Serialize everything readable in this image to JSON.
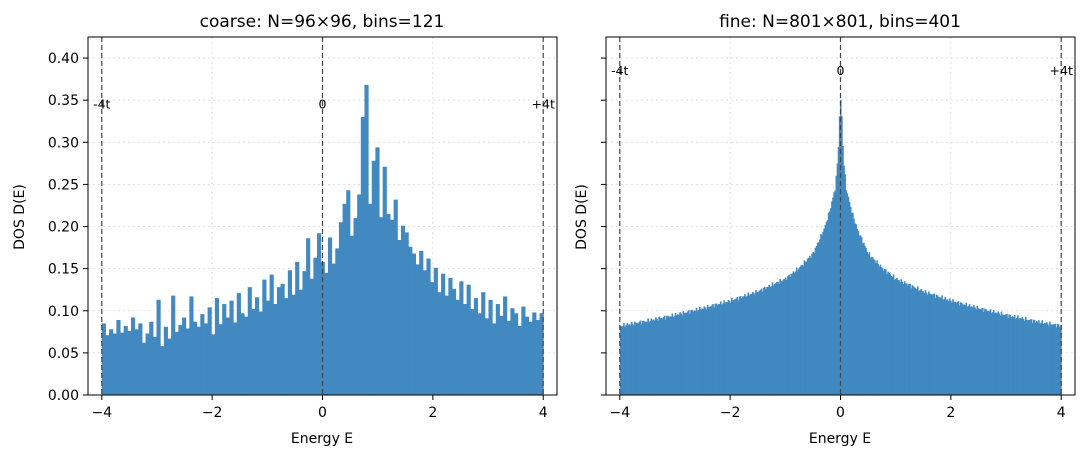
{
  "chart_data": [
    {
      "type": "bar",
      "title": "coarse: N=96×96, bins=121",
      "xlabel": "Energy E",
      "ylabel": "DOS D(E)",
      "xlim": [
        -4.25,
        4.25
      ],
      "ylim": [
        0,
        0.425
      ],
      "xticks": [
        -4,
        -2,
        0,
        2,
        4
      ],
      "xtick_labels": [
        "−4",
        "−2",
        "0",
        "2",
        "4"
      ],
      "yticks": [
        0,
        0.05,
        0.1,
        0.15,
        0.2,
        0.25,
        0.3,
        0.35,
        0.4
      ],
      "ytick_labels": [
        "0.00",
        "0.05",
        "0.10",
        "0.15",
        "0.20",
        "0.25",
        "0.30",
        "0.35",
        "0.40"
      ],
      "grid": true,
      "bar_color": "#4189c0",
      "bin_range": [
        -4,
        4
      ],
      "bins": 121,
      "values": [
        0.085,
        0.071,
        0.078,
        0.073,
        0.089,
        0.074,
        0.082,
        0.076,
        0.092,
        0.078,
        0.085,
        0.062,
        0.073,
        0.087,
        0.069,
        0.113,
        0.058,
        0.081,
        0.067,
        0.118,
        0.075,
        0.083,
        0.092,
        0.079,
        0.117,
        0.087,
        0.081,
        0.096,
        0.085,
        0.104,
        0.072,
        0.115,
        0.084,
        0.108,
        0.092,
        0.112,
        0.086,
        0.121,
        0.097,
        0.093,
        0.128,
        0.102,
        0.116,
        0.099,
        0.137,
        0.112,
        0.143,
        0.108,
        0.128,
        0.132,
        0.115,
        0.148,
        0.119,
        0.158,
        0.125,
        0.147,
        0.186,
        0.138,
        0.163,
        0.192,
        0.158,
        0.145,
        0.187,
        0.156,
        0.174,
        0.205,
        0.227,
        0.243,
        0.189,
        0.21,
        0.238,
        0.33,
        0.368,
        0.227,
        0.278,
        0.294,
        0.211,
        0.271,
        0.215,
        0.208,
        0.232,
        0.184,
        0.201,
        0.193,
        0.176,
        0.168,
        0.155,
        0.171,
        0.148,
        0.162,
        0.134,
        0.151,
        0.122,
        0.144,
        0.118,
        0.139,
        0.126,
        0.113,
        0.135,
        0.108,
        0.131,
        0.102,
        0.115,
        0.097,
        0.122,
        0.091,
        0.113,
        0.085,
        0.108,
        0.094,
        0.117,
        0.088,
        0.103,
        0.097,
        0.082,
        0.105,
        0.093,
        0.087,
        0.098,
        0.089,
        0.097
      ],
      "vlines": [
        {
          "x": -4,
          "label": "-4t"
        },
        {
          "x": 0,
          "label": "0"
        },
        {
          "x": 4,
          "label": "+4t"
        }
      ]
    },
    {
      "type": "bar",
      "title": "fine: N=801×801, bins=401",
      "xlabel": "Energy E",
      "ylabel": "DOS D(E)",
      "xlim": [
        -4.25,
        4.25
      ],
      "ylim": [
        0,
        0.425
      ],
      "xticks": [
        -4,
        -2,
        0,
        2,
        4
      ],
      "xtick_labels": [
        "−4",
        "−2",
        "0",
        "2",
        "4"
      ],
      "yticks": [
        0,
        0.05,
        0.1,
        0.15,
        0.2,
        0.25,
        0.3,
        0.35,
        0.4
      ],
      "shared_y": true,
      "grid": true,
      "bar_color": "#4189c0",
      "bin_range": [
        -4,
        4
      ],
      "bins": 401,
      "profile": {
        "E": [
          0,
          0.02,
          0.05,
          0.1,
          0.2,
          0.3,
          0.5,
          0.75,
          1.0,
          1.5,
          2.0,
          2.5,
          3.0,
          3.5,
          4.0
        ],
        "D": [
          0.35,
          0.33,
          0.28,
          0.245,
          0.218,
          0.197,
          0.168,
          0.151,
          0.138,
          0.123,
          0.112,
          0.103,
          0.095,
          0.088,
          0.082
        ]
      },
      "vlines": [
        {
          "x": -4,
          "label": "-4t"
        },
        {
          "x": 0,
          "label": "0"
        },
        {
          "x": 4,
          "label": "+4t"
        }
      ]
    }
  ]
}
